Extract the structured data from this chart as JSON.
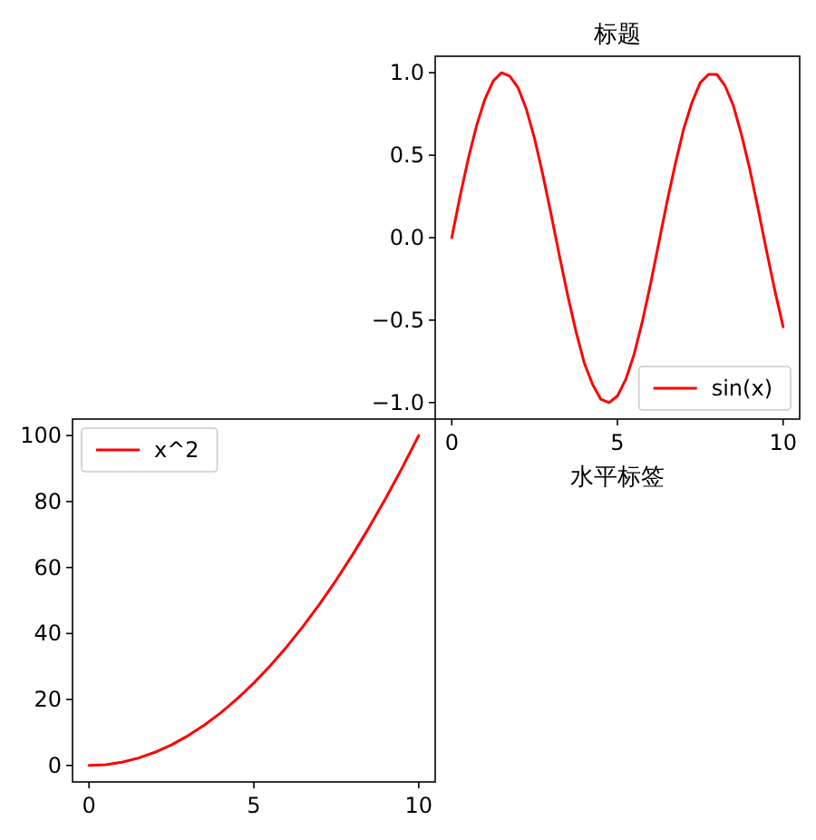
{
  "chart_data": [
    {
      "type": "line",
      "title": "标题",
      "xlabel": "水平标签",
      "legend": "bottom right",
      "xlim": [
        -0.5,
        10.5
      ],
      "xticks": [
        0,
        5,
        10
      ],
      "ylim": [
        -1.1,
        1.1
      ],
      "yticks": [
        {
          "value": -1,
          "label": "−1.0"
        },
        {
          "value": -0.5,
          "label": "−0.5"
        },
        {
          "value": 0,
          "label": "0.0"
        },
        {
          "value": 0.5,
          "label": "0.5"
        },
        {
          "value": 1,
          "label": "1.0"
        }
      ],
      "x": [
        0,
        0.25,
        0.5,
        0.75,
        1,
        1.25,
        1.5,
        1.75,
        2,
        2.25,
        2.5,
        2.75,
        3,
        3.25,
        3.5,
        3.75,
        4,
        4.25,
        4.5,
        4.75,
        5,
        5.25,
        5.5,
        5.75,
        6,
        6.25,
        6.5,
        6.75,
        7,
        7.25,
        7.5,
        7.75,
        8,
        8.25,
        8.5,
        8.75,
        9,
        9.25,
        9.5,
        9.75,
        10
      ],
      "series": [
        {
          "name": "sin(x)",
          "color": "#ff0000",
          "values": [
            0,
            0.25,
            0.48,
            0.68,
            0.84,
            0.95,
            1.0,
            0.98,
            0.91,
            0.78,
            0.6,
            0.38,
            0.14,
            -0.11,
            -0.35,
            -0.57,
            -0.76,
            -0.89,
            -0.98,
            -1.0,
            -0.96,
            -0.86,
            -0.71,
            -0.51,
            -0.28,
            -0.03,
            0.22,
            0.45,
            0.66,
            0.82,
            0.94,
            0.99,
            0.99,
            0.92,
            0.8,
            0.62,
            0.41,
            0.17,
            -0.08,
            -0.32,
            -0.54
          ]
        }
      ]
    },
    {
      "type": "line",
      "legend": "top left",
      "xlim": [
        -0.5,
        10.5
      ],
      "xticks": [
        0,
        5,
        10
      ],
      "ylim": [
        -5,
        105
      ],
      "yticks": [
        0,
        20,
        40,
        60,
        80,
        100
      ],
      "x": [
        0,
        0.5,
        1,
        1.5,
        2,
        2.5,
        3,
        3.5,
        4,
        4.5,
        5,
        5.5,
        6,
        6.5,
        7,
        7.5,
        8,
        8.5,
        9,
        9.5,
        10
      ],
      "series": [
        {
          "name": "x^2",
          "color": "#ff0000",
          "values": [
            0,
            0.25,
            1,
            2.25,
            4,
            6.25,
            9,
            12.25,
            16,
            20.25,
            25,
            30.25,
            36,
            42.25,
            49,
            56.25,
            64,
            72.25,
            81,
            90.25,
            100
          ]
        }
      ]
    }
  ]
}
